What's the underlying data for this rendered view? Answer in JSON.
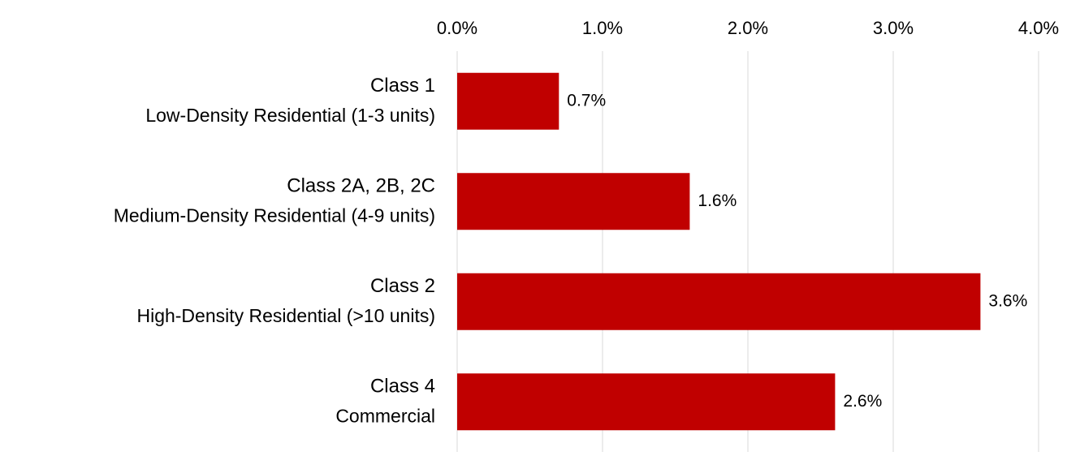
{
  "chart_data": {
    "type": "bar",
    "orientation": "horizontal",
    "title": "",
    "xlabel": "",
    "ylabel": "",
    "xlim": [
      0,
      4.0
    ],
    "x_axis_position": "top",
    "ticks": [
      "0.0%",
      "1.0%",
      "2.0%",
      "3.0%",
      "4.0%"
    ],
    "tick_values": [
      0,
      1,
      2,
      3,
      4
    ],
    "grid": "vertical",
    "categories": [
      {
        "line1": "Class 1",
        "line2": "Low-Density Residential (1-3 units)"
      },
      {
        "line1": "Class 2A, 2B, 2C",
        "line2": "Medium-Density Residential (4-9 units)"
      },
      {
        "line1": "Class 2",
        "line2": "High-Density Residential (>10 units)"
      },
      {
        "line1": "Class 4",
        "line2": "Commercial"
      }
    ],
    "values": [
      0.7,
      1.6,
      3.6,
      2.6
    ],
    "data_labels": [
      "0.7%",
      "1.6%",
      "3.6%",
      "2.6%"
    ],
    "bar_color": "#c00000",
    "gridline_color": "#d9d9d9"
  }
}
